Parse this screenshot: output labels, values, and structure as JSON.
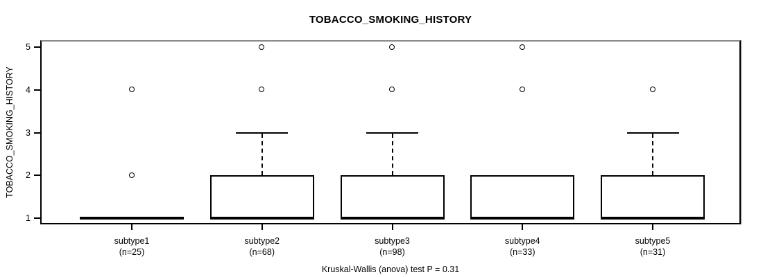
{
  "title": "TOBACCO_SMOKING_HISTORY",
  "y_axis": {
    "label": "TOBACCO_SMOKING_HISTORY"
  },
  "footer": "Kruskal-Wallis (anova) test P = 0.31",
  "chart_data": {
    "type": "boxplot",
    "title": "TOBACCO_SMOKING_HISTORY",
    "ylabel": "TOBACCO_SMOKING_HISTORY",
    "xlabel": "",
    "ylim": [
      1,
      5
    ],
    "yticks": [
      1,
      2,
      3,
      4,
      5
    ],
    "grid": false,
    "legend": "none",
    "categories": [
      "subtype1",
      "subtype2",
      "subtype3",
      "subtype4",
      "subtype5"
    ],
    "category_sublabels": [
      "(n=25)",
      "(n=68)",
      "(n=98)",
      "(n=33)",
      "(n=31)"
    ],
    "sample_sizes": [
      25,
      68,
      98,
      33,
      31
    ],
    "series": [
      {
        "name": "subtype1",
        "n": 25,
        "low_whisker": 1,
        "q1": 1,
        "median": 1,
        "q3": 1,
        "high_whisker": 1,
        "outliers": [
          2,
          4
        ]
      },
      {
        "name": "subtype2",
        "n": 68,
        "low_whisker": 1,
        "q1": 1,
        "median": 1,
        "q3": 2,
        "high_whisker": 3,
        "outliers": [
          4,
          5
        ]
      },
      {
        "name": "subtype3",
        "n": 98,
        "low_whisker": 1,
        "q1": 1,
        "median": 1,
        "q3": 2,
        "high_whisker": 3,
        "outliers": [
          4,
          5
        ]
      },
      {
        "name": "subtype4",
        "n": 33,
        "low_whisker": 1,
        "q1": 1,
        "median": 1,
        "q3": 2,
        "high_whisker": 2,
        "outliers": [
          4,
          5
        ]
      },
      {
        "name": "subtype5",
        "n": 31,
        "low_whisker": 1,
        "q1": 1,
        "median": 1,
        "q3": 2,
        "high_whisker": 3,
        "outliers": [
          4
        ]
      }
    ],
    "annotation": "Kruskal-Wallis (anova) test P = 0.31",
    "colors": {
      "line": "#000000",
      "box_fill": "#ffffff",
      "frame_top": "#898989",
      "background": "#ffffff"
    }
  }
}
